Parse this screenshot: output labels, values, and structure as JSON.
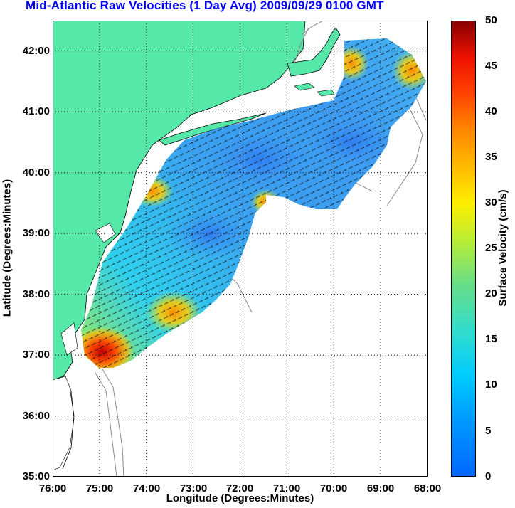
{
  "title": "Mid-Atlantic Raw Velocities (1 Day Avg) 2009/09/29 0100 GMT",
  "map": {
    "xlabel": "Longitude (Degrees:Minutes)",
    "ylabel": "Latitude (Degrees:Minutes)",
    "x_ticks": [
      "76:00",
      "75:00",
      "74:00",
      "73:00",
      "72:00",
      "71:00",
      "70:00",
      "69:00",
      "68:00"
    ],
    "y_ticks": [
      "42:00",
      "41:00",
      "40:00",
      "39:00",
      "38:00",
      "37:00",
      "36:00",
      "35:00"
    ],
    "lon_range": [
      -76,
      -68
    ],
    "lat_range": [
      35,
      42.5
    ],
    "land_color": "#55e8a8",
    "grid": "dotted"
  },
  "colorbar": {
    "label": "Surface Velocity (cm/s)",
    "ticks": [
      "0",
      "5",
      "10",
      "15",
      "20",
      "25",
      "30",
      "35",
      "40",
      "45",
      "50"
    ],
    "range": [
      0,
      50
    ],
    "colormap": "jet"
  }
}
